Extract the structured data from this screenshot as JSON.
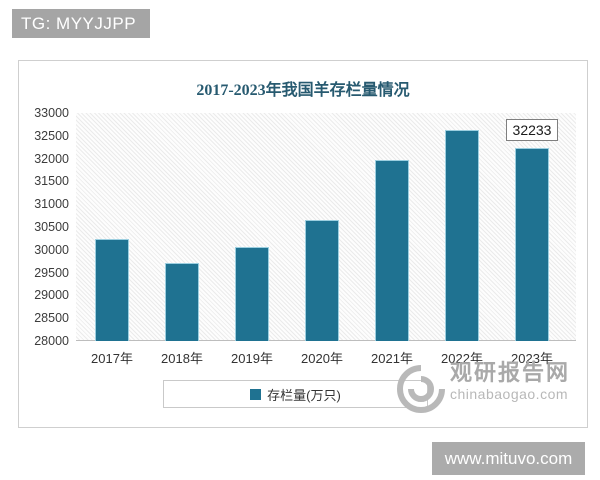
{
  "header": {
    "badge_text": "TG: MYYJJPP"
  },
  "chart_data": {
    "type": "bar",
    "title": "2017-2023年我国羊存栏量情况",
    "categories": [
      "2017年",
      "2018年",
      "2019年",
      "2020年",
      "2021年",
      "2022年",
      "2023年"
    ],
    "values": [
      30232,
      29714,
      30072,
      30655,
      31969,
      32627,
      32233
    ],
    "series_name": "存栏量(万只)",
    "xlabel": "",
    "ylabel": "",
    "ylim": [
      28000,
      33000
    ],
    "ytick_step": 500,
    "grid": false,
    "legend_position": "bottom",
    "bar_color": "#1F7291",
    "annotation": {
      "category": "2023年",
      "label": "32233"
    }
  },
  "watermark": {
    "name": "观研报告网",
    "domain": "chinabaogao.com"
  },
  "footer": {
    "site": "www.mituvo.com"
  },
  "colors": {
    "bar": "#1F7291",
    "title": "#275A70",
    "badge_bg": "#A5A5A5",
    "footer_bg": "#ABABAB"
  }
}
